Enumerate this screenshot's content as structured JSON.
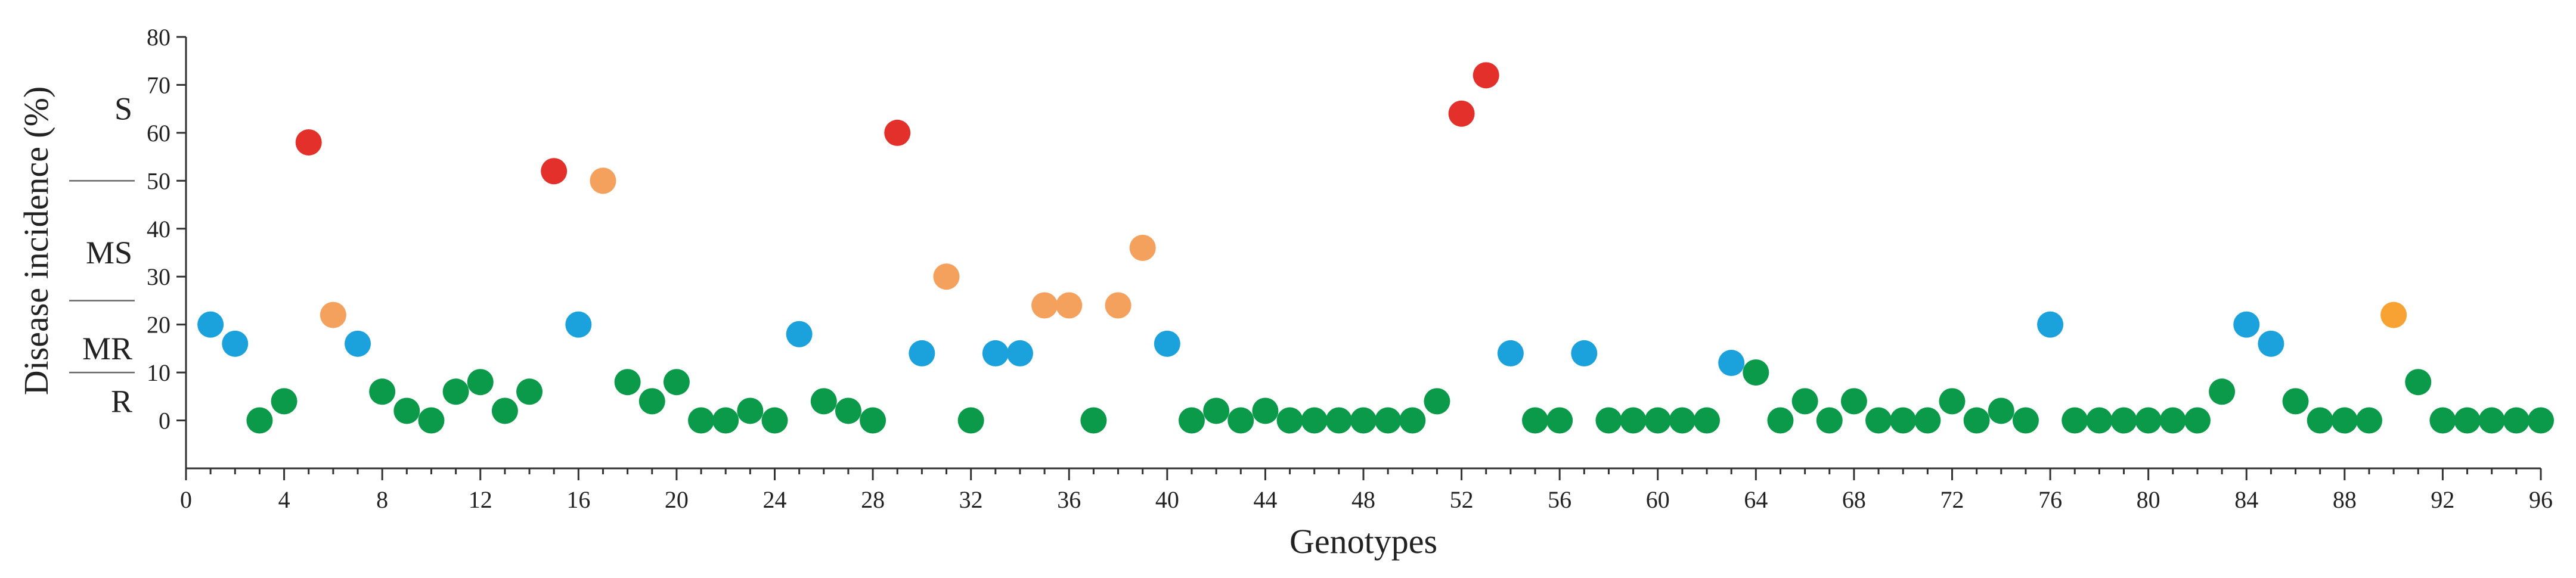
{
  "chart_data": {
    "type": "scatter",
    "xlabel": "Genotypes",
    "ylabel": "Disease incidence (%)",
    "xlim": [
      0,
      96
    ],
    "ylim": [
      -10,
      80
    ],
    "x_ticks": [
      0,
      4,
      8,
      12,
      16,
      20,
      24,
      28,
      32,
      36,
      40,
      44,
      48,
      52,
      56,
      60,
      64,
      68,
      72,
      76,
      80,
      84,
      88,
      92,
      96
    ],
    "y_ticks": [
      0,
      10,
      20,
      30,
      40,
      50,
      60,
      70,
      80
    ],
    "grid": false,
    "legend": "none",
    "resistance_classes": [
      {
        "label": "S",
        "y": 65
      },
      {
        "label": "MS",
        "y": 35
      },
      {
        "label": "MR",
        "y": 15
      },
      {
        "label": "R",
        "y": 4
      }
    ],
    "class_separators": [
      50,
      25,
      10
    ],
    "colors": {
      "red": "#e3302b",
      "salmon": "#f5a15e",
      "orange": "#f8a233",
      "blue": "#1ba2dd",
      "green": "#0b9a49"
    },
    "points": [
      {
        "x": 1,
        "y": 20,
        "color": "blue"
      },
      {
        "x": 2,
        "y": 16,
        "color": "blue"
      },
      {
        "x": 3,
        "y": 0,
        "color": "green"
      },
      {
        "x": 4,
        "y": 4,
        "color": "green"
      },
      {
        "x": 5,
        "y": 58,
        "color": "red"
      },
      {
        "x": 6,
        "y": 22,
        "color": "salmon"
      },
      {
        "x": 7,
        "y": 16,
        "color": "blue"
      },
      {
        "x": 8,
        "y": 6,
        "color": "green"
      },
      {
        "x": 9,
        "y": 2,
        "color": "green"
      },
      {
        "x": 10,
        "y": 0,
        "color": "green"
      },
      {
        "x": 11,
        "y": 6,
        "color": "green"
      },
      {
        "x": 12,
        "y": 8,
        "color": "green"
      },
      {
        "x": 13,
        "y": 2,
        "color": "green"
      },
      {
        "x": 14,
        "y": 6,
        "color": "green"
      },
      {
        "x": 15,
        "y": 52,
        "color": "red"
      },
      {
        "x": 16,
        "y": 20,
        "color": "blue"
      },
      {
        "x": 17,
        "y": 50,
        "color": "salmon"
      },
      {
        "x": 18,
        "y": 8,
        "color": "green"
      },
      {
        "x": 19,
        "y": 4,
        "color": "green"
      },
      {
        "x": 20,
        "y": 8,
        "color": "green"
      },
      {
        "x": 21,
        "y": 0,
        "color": "green"
      },
      {
        "x": 22,
        "y": 0,
        "color": "green"
      },
      {
        "x": 23,
        "y": 2,
        "color": "green"
      },
      {
        "x": 24,
        "y": 0,
        "color": "green"
      },
      {
        "x": 25,
        "y": 18,
        "color": "blue"
      },
      {
        "x": 26,
        "y": 4,
        "color": "green"
      },
      {
        "x": 27,
        "y": 2,
        "color": "green"
      },
      {
        "x": 28,
        "y": 0,
        "color": "green"
      },
      {
        "x": 29,
        "y": 60,
        "color": "red"
      },
      {
        "x": 30,
        "y": 14,
        "color": "blue"
      },
      {
        "x": 31,
        "y": 30,
        "color": "salmon"
      },
      {
        "x": 32,
        "y": 0,
        "color": "green"
      },
      {
        "x": 33,
        "y": 14,
        "color": "blue"
      },
      {
        "x": 34,
        "y": 14,
        "color": "blue"
      },
      {
        "x": 35,
        "y": 24,
        "color": "salmon"
      },
      {
        "x": 36,
        "y": 24,
        "color": "salmon"
      },
      {
        "x": 37,
        "y": 0,
        "color": "green"
      },
      {
        "x": 38,
        "y": 24,
        "color": "salmon"
      },
      {
        "x": 39,
        "y": 36,
        "color": "salmon"
      },
      {
        "x": 40,
        "y": 16,
        "color": "blue"
      },
      {
        "x": 41,
        "y": 0,
        "color": "green"
      },
      {
        "x": 42,
        "y": 2,
        "color": "green"
      },
      {
        "x": 43,
        "y": 0,
        "color": "green"
      },
      {
        "x": 44,
        "y": 2,
        "color": "green"
      },
      {
        "x": 45,
        "y": 0,
        "color": "green"
      },
      {
        "x": 46,
        "y": 0,
        "color": "green"
      },
      {
        "x": 47,
        "y": 0,
        "color": "green"
      },
      {
        "x": 48,
        "y": 0,
        "color": "green"
      },
      {
        "x": 49,
        "y": 0,
        "color": "green"
      },
      {
        "x": 50,
        "y": 0,
        "color": "green"
      },
      {
        "x": 51,
        "y": 4,
        "color": "green"
      },
      {
        "x": 52,
        "y": 64,
        "color": "red"
      },
      {
        "x": 53,
        "y": 72,
        "color": "red"
      },
      {
        "x": 54,
        "y": 14,
        "color": "blue"
      },
      {
        "x": 55,
        "y": 0,
        "color": "green"
      },
      {
        "x": 56,
        "y": 0,
        "color": "green"
      },
      {
        "x": 57,
        "y": 14,
        "color": "blue"
      },
      {
        "x": 58,
        "y": 0,
        "color": "green"
      },
      {
        "x": 59,
        "y": 0,
        "color": "green"
      },
      {
        "x": 60,
        "y": 0,
        "color": "green"
      },
      {
        "x": 61,
        "y": 0,
        "color": "green"
      },
      {
        "x": 62,
        "y": 0,
        "color": "green"
      },
      {
        "x": 63,
        "y": 12,
        "color": "blue"
      },
      {
        "x": 64,
        "y": 10,
        "color": "green"
      },
      {
        "x": 65,
        "y": 0,
        "color": "green"
      },
      {
        "x": 66,
        "y": 4,
        "color": "green"
      },
      {
        "x": 67,
        "y": 0,
        "color": "green"
      },
      {
        "x": 68,
        "y": 4,
        "color": "green"
      },
      {
        "x": 69,
        "y": 0,
        "color": "green"
      },
      {
        "x": 70,
        "y": 0,
        "color": "green"
      },
      {
        "x": 71,
        "y": 0,
        "color": "green"
      },
      {
        "x": 72,
        "y": 4,
        "color": "green"
      },
      {
        "x": 73,
        "y": 0,
        "color": "green"
      },
      {
        "x": 74,
        "y": 2,
        "color": "green"
      },
      {
        "x": 75,
        "y": 0,
        "color": "green"
      },
      {
        "x": 76,
        "y": 20,
        "color": "blue"
      },
      {
        "x": 77,
        "y": 0,
        "color": "green"
      },
      {
        "x": 78,
        "y": 0,
        "color": "green"
      },
      {
        "x": 79,
        "y": 0,
        "color": "green"
      },
      {
        "x": 80,
        "y": 0,
        "color": "green"
      },
      {
        "x": 81,
        "y": 0,
        "color": "green"
      },
      {
        "x": 82,
        "y": 0,
        "color": "green"
      },
      {
        "x": 83,
        "y": 6,
        "color": "green"
      },
      {
        "x": 84,
        "y": 20,
        "color": "blue"
      },
      {
        "x": 85,
        "y": 16,
        "color": "blue"
      },
      {
        "x": 86,
        "y": 4,
        "color": "green"
      },
      {
        "x": 87,
        "y": 0,
        "color": "green"
      },
      {
        "x": 88,
        "y": 0,
        "color": "green"
      },
      {
        "x": 89,
        "y": 0,
        "color": "green"
      },
      {
        "x": 90,
        "y": 22,
        "color": "orange"
      },
      {
        "x": 91,
        "y": 8,
        "color": "green"
      },
      {
        "x": 92,
        "y": 0,
        "color": "green"
      },
      {
        "x": 93,
        "y": 0,
        "color": "green"
      },
      {
        "x": 94,
        "y": 0,
        "color": "green"
      },
      {
        "x": 95,
        "y": 0,
        "color": "green"
      },
      {
        "x": 96,
        "y": 0,
        "color": "green"
      }
    ]
  }
}
